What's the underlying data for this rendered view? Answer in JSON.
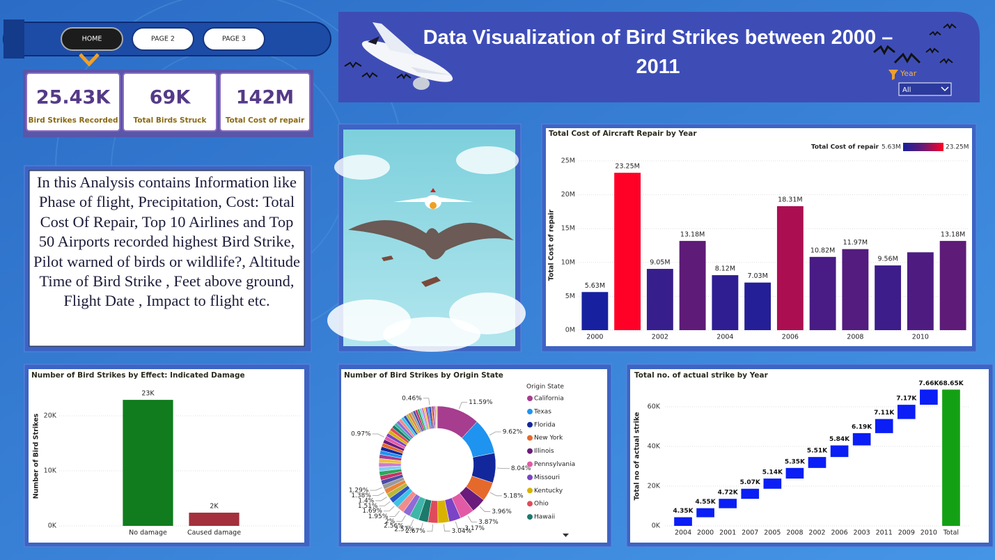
{
  "nav": {
    "buttons": [
      "HOME",
      "PAGE 2",
      "PAGE 3"
    ]
  },
  "header": {
    "title": "Data Visualization of Bird Strikes between 2000 – 2011",
    "slicer": {
      "label": "Year",
      "value": "All"
    }
  },
  "kpis": [
    {
      "value": "25.43K",
      "label": "Bird Strikes Recorded"
    },
    {
      "value": "69K",
      "label": "Total Birds Struck"
    },
    {
      "value": "142M",
      "label": "Total Cost of repair"
    }
  ],
  "description": "In this Analysis contains Information like Phase of flight, Precipitation, Cost: Total Cost Of Repair, Top 10 Airlines and Top 50 Airports recorded highest Bird Strike, Pilot warned of birds or wildlife?, Altitude Time of Bird Strike , Feet above ground, Flight Date , Impact to flight etc.",
  "chart_data": [
    {
      "type": "bar",
      "title": "Total Cost of Aircraft Repair by Year",
      "y_label": "Total Cost of repair",
      "categories": [
        "2000",
        null,
        "2002",
        null,
        "2004",
        null,
        "2006",
        null,
        "2008",
        null,
        "2010",
        null
      ],
      "values": [
        5.63,
        23.25,
        9.05,
        13.18,
        8.12,
        7.03,
        18.31,
        10.82,
        11.97,
        9.56,
        11.5,
        13.18
      ],
      "value_labels": [
        "5.63M",
        "23.25M",
        "9.05M",
        "13.18M",
        "8.12M",
        "7.03M",
        "18.31M",
        "10.82M",
        "11.97M",
        "9.56M",
        null,
        "13.18M"
      ],
      "ylim": [
        0,
        25
      ],
      "yticks": [
        {
          "value": 0,
          "label": "0M"
        },
        {
          "value": 5,
          "label": "5M"
        },
        {
          "value": 10,
          "label": "10M"
        },
        {
          "value": 15,
          "label": "15M"
        },
        {
          "value": 20,
          "label": "20M"
        },
        {
          "value": 25,
          "label": "25M"
        }
      ],
      "grid": true,
      "color_scale": {
        "title": "Total Cost of repair",
        "min": {
          "value": 5.63,
          "label": "5.63M"
        },
        "max": {
          "value": 23.25,
          "label": "23.25M"
        },
        "colors": [
          "#17209e",
          "#6a1a72",
          "#ff0026"
        ]
      }
    },
    {
      "type": "bar",
      "title": "Number of Bird Strikes by Effect: Indicated Damage",
      "y_label": "Number of Bird Strikes",
      "categories": [
        "No damage",
        "Caused damage"
      ],
      "values": [
        22.9,
        2.4
      ],
      "value_labels": [
        "23K",
        "2K"
      ],
      "colors": [
        "#107c1e",
        "#a3303c"
      ],
      "ylim": [
        0,
        25
      ],
      "yticks": [
        {
          "value": 0,
          "label": "0K"
        },
        {
          "value": 10,
          "label": "10K"
        },
        {
          "value": 20,
          "label": "20K"
        }
      ],
      "grid": true
    },
    {
      "type": "donut",
      "title": "Number of Bird Strikes by Origin State",
      "legend_title": "Origin State",
      "categories": [
        "California",
        "Texas",
        "Florida",
        "New York",
        "Illinois",
        "Pennsylvania",
        "Missouri",
        "Kentucky",
        "Ohio",
        "Hawaii",
        null,
        null,
        null,
        null,
        null,
        null,
        null,
        null,
        null,
        null,
        null,
        null,
        null,
        null,
        null,
        null,
        null,
        null,
        null,
        null,
        null,
        null,
        null,
        null,
        null,
        null,
        null,
        null,
        null,
        null,
        null,
        null,
        null,
        null,
        null,
        null,
        null,
        null,
        null,
        null,
        null,
        null,
        null,
        null,
        null,
        null,
        null,
        null
      ],
      "values": [
        11.59,
        9.62,
        8.04,
        5.18,
        3.96,
        3.87,
        3.17,
        3.04,
        2.67,
        2.57,
        2.56,
        2,
        1.95,
        1.69,
        1.51,
        1.4,
        1.38,
        1.29,
        1.25,
        1.22,
        1.2,
        1.18,
        1.15,
        1.12,
        1.1,
        1.08,
        1.05,
        1.02,
        1.0,
        0.97,
        0.95,
        0.92,
        0.9,
        0.88,
        0.85,
        0.82,
        0.8,
        0.78,
        0.75,
        0.72,
        0.7,
        0.68,
        0.65,
        0.62,
        0.6,
        0.58,
        0.55,
        0.52,
        0.5,
        0.48,
        0.46,
        0.4,
        0.35,
        0.3,
        0.25,
        0.2,
        0.15,
        0.1
      ],
      "value_labels": [
        "11.59%",
        "9.62%",
        "8.04%",
        "5.18%",
        "3.96%",
        "3.87%",
        "3.17%",
        "3.04%",
        "2.67%",
        "2.57%",
        "2.56%",
        "2%",
        "1.95%",
        "1.69%",
        "1.51%",
        "1.4%",
        "1.38%",
        "1.29%",
        null,
        null,
        null,
        null,
        null,
        null,
        null,
        null,
        null,
        null,
        null,
        "0.97%",
        null,
        null,
        null,
        null,
        null,
        null,
        null,
        null,
        null,
        null,
        null,
        null,
        null,
        null,
        null,
        null,
        null,
        null,
        null,
        null,
        "0.46%",
        null,
        null,
        null,
        null,
        null,
        null,
        null
      ],
      "palette": [
        "#a63d8f",
        "#1f93f0",
        "#12279c",
        "#e6692c",
        "#6a1b7b",
        "#e25aa5",
        "#7b43c6",
        "#d9b200",
        "#e04b5c",
        "#1b7a6b",
        "#3fb6a8",
        "#8e6bd6",
        "#f28c8c",
        "#3cc4e6",
        "#2a55c4",
        "#b8b83a",
        "#e8843a",
        "#9a9a9a",
        "#4c4ca8",
        "#c4336a",
        "#2fa65a",
        "#7fd0f0",
        "#d07ad0",
        "#f0c040"
      ]
    },
    {
      "type": "waterfall",
      "title": "Total no. of actual strike by Year",
      "y_label": "Total no of actual strike",
      "categories": [
        "2004",
        "2000",
        "2001",
        "2007",
        "2005",
        "2008",
        "2002",
        "2006",
        "2003",
        "2011",
        "2009",
        "2010"
      ],
      "values": [
        4.35,
        4.55,
        4.72,
        5.07,
        5.14,
        5.35,
        5.51,
        5.84,
        6.19,
        7.11,
        7.17,
        7.66
      ],
      "value_labels": [
        "4.35K",
        "4.55K",
        "4.72K",
        "5.07K",
        "5.14K",
        "5.35K",
        "5.51K",
        "5.84K",
        "6.19K",
        "7.11K",
        "7.17K",
        "7.66K"
      ],
      "color": "#0a1ef5",
      "total": {
        "category": "Total",
        "value": 68.65,
        "value_label": "68.65K",
        "color": "#14a014"
      },
      "ylim": [
        0,
        72
      ],
      "yticks": [
        {
          "value": 0,
          "label": "0K"
        },
        {
          "value": 20,
          "label": "20K"
        },
        {
          "value": 40,
          "label": "40K"
        },
        {
          "value": 60,
          "label": "60K"
        }
      ],
      "grid": true
    }
  ]
}
